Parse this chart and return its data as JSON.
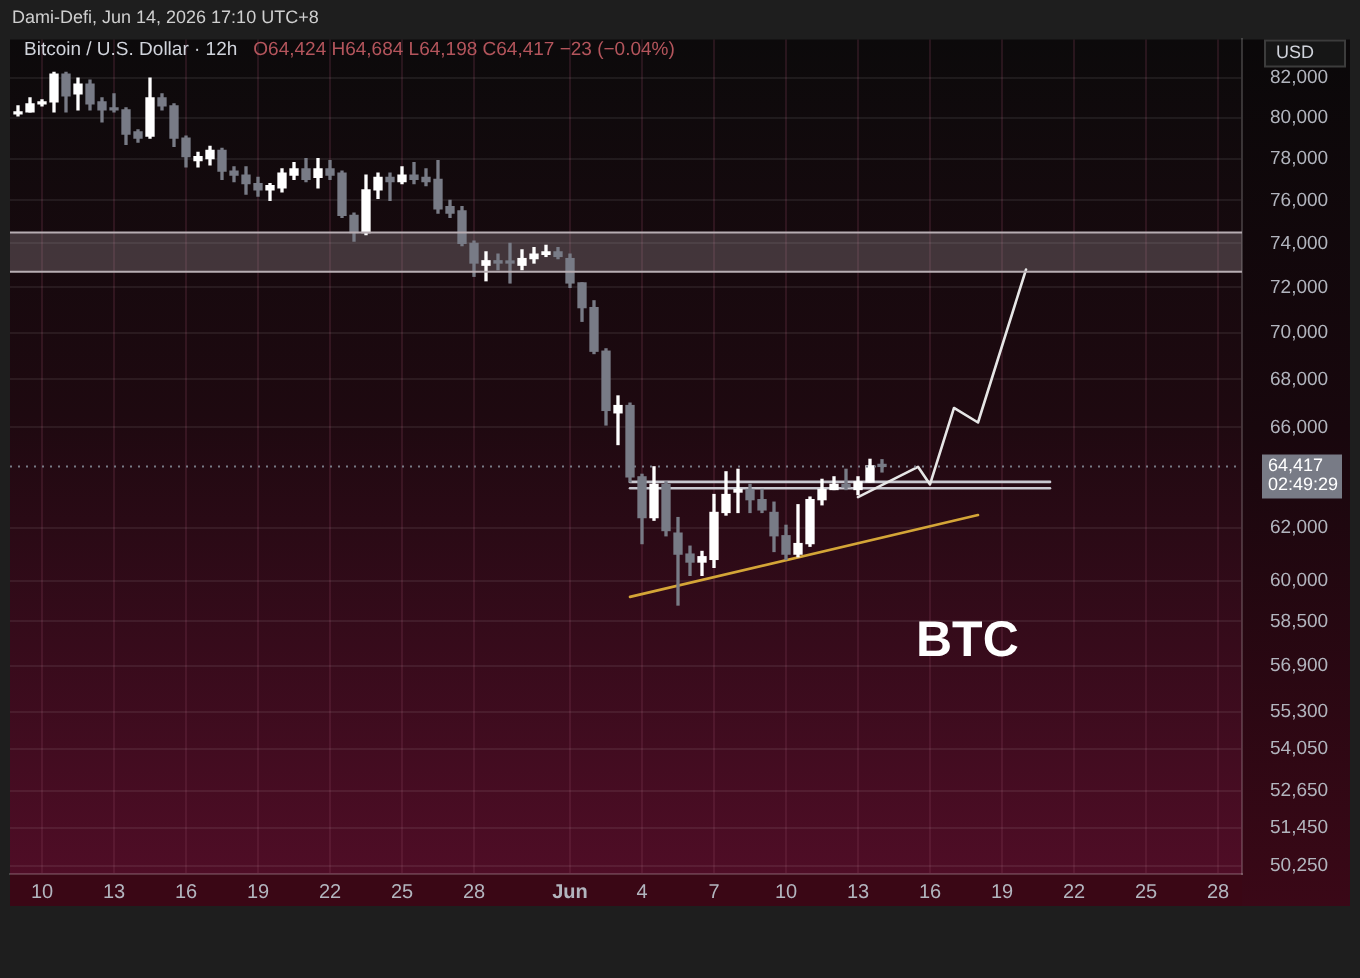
{
  "chart_data": {
    "type": "candlestick",
    "title": "Bitcoin / U.S. Dollar · 12h",
    "subtitle": "O64,424 H64,684 L64,198 C64,417 −23 (−0.04%)",
    "ylabel": "USD",
    "annotations": [
      "Dami-Defi, Jun 14, 2026 17:10 UTC+8",
      "BTC"
    ],
    "x": [
      "2026-05-09T00:00",
      "2026-05-09T12:00",
      "2026-05-10T00:00",
      "2026-05-10T12:00",
      "2026-05-11T00:00",
      "2026-05-11T12:00",
      "2026-05-12T00:00",
      "2026-05-12T12:00",
      "2026-05-13T00:00",
      "2026-05-13T12:00",
      "2026-05-14T00:00",
      "2026-05-14T12:00",
      "2026-05-15T00:00",
      "2026-05-15T12:00",
      "2026-05-16T00:00",
      "2026-05-16T12:00",
      "2026-05-17T00:00",
      "2026-05-17T12:00",
      "2026-05-18T00:00",
      "2026-05-18T12:00",
      "2026-05-19T00:00",
      "2026-05-19T12:00",
      "2026-05-20T00:00",
      "2026-05-20T12:00",
      "2026-05-21T00:00",
      "2026-05-21T12:00",
      "2026-05-22T00:00",
      "2026-05-22T12:00",
      "2026-05-23T00:00",
      "2026-05-23T12:00",
      "2026-05-24T00:00",
      "2026-05-24T12:00",
      "2026-05-25T00:00",
      "2026-05-25T12:00",
      "2026-05-26T00:00",
      "2026-05-26T12:00",
      "2026-05-27T00:00",
      "2026-05-27T12:00",
      "2026-05-28T00:00",
      "2026-05-28T12:00",
      "2026-05-29T00:00",
      "2026-05-29T12:00",
      "2026-05-30T00:00",
      "2026-05-30T12:00",
      "2026-05-31T00:00",
      "2026-05-31T12:00",
      "2026-06-01T00:00",
      "2026-06-01T12:00",
      "2026-06-02T00:00",
      "2026-06-02T12:00",
      "2026-06-03T00:00",
      "2026-06-03T12:00",
      "2026-06-04T00:00",
      "2026-06-04T12:00",
      "2026-06-05T00:00",
      "2026-06-05T12:00",
      "2026-06-06T00:00",
      "2026-06-06T12:00",
      "2026-06-07T00:00",
      "2026-06-07T12:00",
      "2026-06-08T00:00",
      "2026-06-08T12:00",
      "2026-06-09T00:00",
      "2026-06-09T12:00",
      "2026-06-10T00:00",
      "2026-06-10T12:00",
      "2026-06-11T00:00",
      "2026-06-11T12:00",
      "2026-06-12T00:00",
      "2026-06-12T12:00",
      "2026-06-13T00:00",
      "2026-06-13T12:00",
      "2026-06-14T00:00"
    ],
    "ohlc": [
      [
        80200,
        80600,
        80100,
        80300
      ],
      [
        80300,
        81000,
        80300,
        80700
      ],
      [
        80700,
        80900,
        80600,
        80800
      ],
      [
        80800,
        82300,
        80300,
        82200
      ],
      [
        82200,
        82300,
        80300,
        81100
      ],
      [
        81200,
        82000,
        80400,
        81700
      ],
      [
        81700,
        81900,
        80400,
        80700
      ],
      [
        80800,
        81000,
        79800,
        80400
      ],
      [
        80500,
        81200,
        80300,
        80400
      ],
      [
        80400,
        80500,
        78700,
        79200
      ],
      [
        79300,
        79400,
        78800,
        79000
      ],
      [
        79100,
        82000,
        79000,
        81000
      ],
      [
        81000,
        81200,
        80400,
        80600
      ],
      [
        80600,
        80700,
        78600,
        79000
      ],
      [
        79000,
        79100,
        77600,
        78100
      ],
      [
        77900,
        78300,
        77600,
        78100
      ],
      [
        78000,
        78600,
        77700,
        78400
      ],
      [
        78400,
        78500,
        77000,
        77400
      ],
      [
        77400,
        77600,
        76900,
        77200
      ],
      [
        77200,
        77600,
        76300,
        76800
      ],
      [
        76800,
        77100,
        76200,
        76500
      ],
      [
        76500,
        76800,
        76000,
        76700
      ],
      [
        76600,
        77500,
        76400,
        77300
      ],
      [
        77200,
        77800,
        77000,
        77500
      ],
      [
        77500,
        78000,
        76900,
        77000
      ],
      [
        77100,
        78000,
        76600,
        77500
      ],
      [
        77500,
        77900,
        77000,
        77200
      ],
      [
        77300,
        77400,
        75200,
        75300
      ],
      [
        75300,
        75400,
        74100,
        74500
      ],
      [
        74500,
        77200,
        74400,
        76500
      ],
      [
        76500,
        77300,
        76100,
        77100
      ],
      [
        77100,
        77300,
        76000,
        76900
      ],
      [
        76900,
        77600,
        76800,
        77200
      ],
      [
        77200,
        77800,
        76800,
        77000
      ],
      [
        77100,
        77500,
        76700,
        76900
      ],
      [
        77000,
        77900,
        75400,
        75600
      ],
      [
        75700,
        76000,
        75200,
        75400
      ],
      [
        75500,
        75700,
        73900,
        74000
      ],
      [
        74000,
        74100,
        72500,
        73100
      ],
      [
        73000,
        73600,
        72300,
        73200
      ],
      [
        73200,
        73500,
        72800,
        73100
      ],
      [
        73100,
        74000,
        72200,
        73100
      ],
      [
        73000,
        73700,
        72800,
        73300
      ],
      [
        73300,
        73800,
        73100,
        73500
      ],
      [
        73500,
        73900,
        73400,
        73600
      ],
      [
        73600,
        73800,
        73300,
        73400
      ],
      [
        73300,
        73500,
        72000,
        72200
      ],
      [
        72200,
        72200,
        70500,
        71100
      ],
      [
        71100,
        71400,
        69100,
        69200
      ],
      [
        69200,
        69300,
        66100,
        66700
      ],
      [
        66600,
        67300,
        65300,
        66900
      ],
      [
        66900,
        67000,
        63800,
        64000
      ],
      [
        64000,
        64100,
        61400,
        62400
      ],
      [
        62400,
        64400,
        62300,
        63700
      ],
      [
        63700,
        63800,
        61700,
        61900
      ],
      [
        61800,
        62400,
        59100,
        61000
      ],
      [
        61000,
        61300,
        60200,
        60700
      ],
      [
        60700,
        61100,
        60200,
        60900
      ],
      [
        60800,
        63300,
        60500,
        62600
      ],
      [
        62600,
        64200,
        62500,
        63300
      ],
      [
        63400,
        64300,
        62600,
        63500
      ],
      [
        63500,
        63700,
        62600,
        63100
      ],
      [
        63100,
        63500,
        62600,
        62700
      ],
      [
        62600,
        63000,
        61100,
        61700
      ],
      [
        61700,
        62100,
        60800,
        61000
      ],
      [
        61000,
        62900,
        60900,
        61400
      ],
      [
        61400,
        63200,
        61300,
        63100
      ],
      [
        63100,
        63900,
        62900,
        63500
      ],
      [
        63500,
        64000,
        63500,
        63700
      ],
      [
        63700,
        64300,
        63500,
        63600
      ],
      [
        63500,
        64000,
        63300,
        63800
      ],
      [
        63800,
        64700,
        63800,
        64440
      ],
      [
        64424,
        64684,
        64198,
        64417
      ]
    ],
    "colors": [
      "#ffffff",
      "#ffffff",
      "#ffffff",
      "#ffffff",
      "#787b86",
      "#ffffff",
      "#787b86",
      "#787b86",
      "#787b86",
      "#787b86",
      "#787b86",
      "#ffffff",
      "#787b86",
      "#787b86",
      "#787b86",
      "#ffffff",
      "#ffffff",
      "#787b86",
      "#787b86",
      "#787b86",
      "#787b86",
      "#ffffff",
      "#ffffff",
      "#ffffff",
      "#787b86",
      "#ffffff",
      "#787b86",
      "#787b86",
      "#787b86",
      "#ffffff",
      "#ffffff",
      "#787b86",
      "#ffffff",
      "#787b86",
      "#787b86",
      "#787b86",
      "#787b86",
      "#787b86",
      "#787b86",
      "#ffffff",
      "#787b86",
      "#787b86",
      "#ffffff",
      "#ffffff",
      "#ffffff",
      "#787b86",
      "#787b86",
      "#787b86",
      "#787b86",
      "#787b86",
      "#ffffff",
      "#787b86",
      "#787b86",
      "#ffffff",
      "#787b86",
      "#787b86",
      "#787b86",
      "#ffffff",
      "#ffffff",
      "#ffffff",
      "#ffffff",
      "#787b86",
      "#787b86",
      "#787b86",
      "#787b86",
      "#ffffff",
      "#ffffff",
      "#ffffff",
      "#ffffff",
      "#787b86",
      "#ffffff",
      "#ffffff",
      "#787b86"
    ],
    "series": [
      {
        "type": "line",
        "color": "#d4a537",
        "x": [
          "2026-06-03T12:00",
          "2026-06-18T00:00"
        ],
        "values": [
          59400,
          62500
        ]
      },
      {
        "type": "line",
        "color": "#e6e6e6",
        "x": [
          "2026-06-13T00:00",
          "2026-06-15T12:00",
          "2026-06-16T00:00",
          "2026-06-17T00:00",
          "2026-06-18T00:00",
          "2026-06-20T00:00"
        ],
        "values": [
          63200,
          64400,
          63700,
          66800,
          66200,
          72800
        ]
      },
      {
        "type": "line",
        "color": "#c8c8d0",
        "x": [
          "2026-06-03T12:00",
          "2026-06-21T00:00"
        ],
        "values": [
          63800,
          63800
        ]
      },
      {
        "type": "line",
        "color": "#c8c8d0",
        "x": [
          "2026-06-03T12:00",
          "2026-06-21T00:00"
        ],
        "values": [
          63550,
          63550
        ]
      }
    ],
    "bands": [
      {
        "axis": "y",
        "from": 72700,
        "to": 74500,
        "color": "#a89aa2"
      }
    ],
    "ref_lines": [
      {
        "axis": "y",
        "value": 64417,
        "label": "64,417\n02:49:29",
        "color": "#787b86",
        "line_style": "dotted"
      },
      {
        "axis": "y",
        "value": 74500,
        "color": "#b8aeb3",
        "line_style": "solid"
      },
      {
        "axis": "y",
        "value": 72700,
        "color": "#b8aeb3",
        "line_style": "solid"
      }
    ],
    "log": true,
    "xlim": [
      "2026-05-08T16:00",
      "2026-06-29T00:00"
    ],
    "xticks": [
      {
        "value": "2026-05-10",
        "label": "10"
      },
      {
        "value": "2026-05-13",
        "label": "13"
      },
      {
        "value": "2026-05-16",
        "label": "16"
      },
      {
        "value": "2026-05-19",
        "label": "19"
      },
      {
        "value": "2026-05-22",
        "label": "22"
      },
      {
        "value": "2026-05-25",
        "label": "25"
      },
      {
        "value": "2026-05-28",
        "label": "28"
      },
      {
        "value": "2026-06-01",
        "label": "Jun"
      },
      {
        "value": "2026-06-04",
        "label": "4"
      },
      {
        "value": "2026-06-07",
        "label": "7"
      },
      {
        "value": "2026-06-10",
        "label": "10"
      },
      {
        "value": "2026-06-13",
        "label": "13"
      },
      {
        "value": "2026-06-16",
        "label": "16"
      },
      {
        "value": "2026-06-19",
        "label": "19"
      },
      {
        "value": "2026-06-22",
        "label": "22"
      },
      {
        "value": "2026-06-25",
        "label": "25"
      },
      {
        "value": "2026-06-28",
        "label": "28"
      }
    ],
    "ylim": [
      50000,
      84000
    ],
    "yticks": [
      {
        "value": 82000,
        "label": "82,000"
      },
      {
        "value": 80000,
        "label": "80,000"
      },
      {
        "value": 78000,
        "label": "78,000"
      },
      {
        "value": 76000,
        "label": "76,000"
      },
      {
        "value": 74000,
        "label": "74,000"
      },
      {
        "value": 72000,
        "label": "72,000"
      },
      {
        "value": 70000,
        "label": "70,000"
      },
      {
        "value": 68000,
        "label": "68,000"
      },
      {
        "value": 66000,
        "label": "66,000"
      },
      {
        "value": 62000,
        "label": "62,000"
      },
      {
        "value": 60000,
        "label": "60,000"
      },
      {
        "value": 58500,
        "label": "58,500"
      },
      {
        "value": 56900,
        "label": "56,900"
      },
      {
        "value": 55300,
        "label": "55,300"
      },
      {
        "value": 54050,
        "label": "54,050"
      },
      {
        "value": 52650,
        "label": "52,650"
      },
      {
        "value": 51450,
        "label": "51,450"
      },
      {
        "value": 50250,
        "label": "50,250"
      }
    ],
    "grid": true
  }
}
